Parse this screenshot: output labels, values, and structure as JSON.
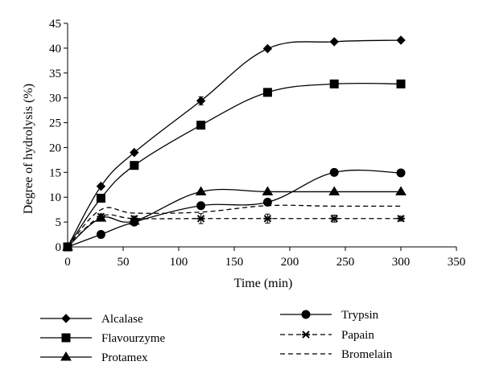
{
  "chart_data": {
    "type": "line",
    "title": "",
    "xlabel": "Time (min)",
    "ylabel": "Degree of hydrolysis (%)",
    "xlim": [
      0,
      350
    ],
    "ylim": [
      0,
      45
    ],
    "x_ticks": [
      "0",
      "50",
      "100",
      "150",
      "200",
      "250",
      "300",
      "350"
    ],
    "y_ticks": [
      "0",
      "5",
      "10",
      "15",
      "20",
      "25",
      "30",
      "35",
      "40",
      "45"
    ],
    "x": [
      0,
      30,
      60,
      120,
      180,
      240,
      300
    ],
    "grid": false,
    "legend_position": "bottom",
    "series": [
      {
        "name": "Alcalase",
        "marker": "diamond",
        "line": "solid",
        "values": [
          0,
          12.2,
          19.0,
          29.4,
          39.9,
          41.3,
          41.6
        ]
      },
      {
        "name": "Flavourzyme",
        "marker": "square",
        "line": "solid",
        "values": [
          0,
          9.8,
          16.4,
          24.5,
          31.1,
          32.8,
          32.8
        ]
      },
      {
        "name": "Protamex",
        "marker": "triangle",
        "line": "solid",
        "values": [
          0,
          5.8,
          5.2,
          11.1,
          11.1,
          11.1,
          11.1
        ]
      },
      {
        "name": "Trypsin",
        "marker": "circle",
        "line": "solid",
        "values": [
          0,
          2.5,
          5.0,
          8.3,
          9.0,
          15.0,
          14.9
        ]
      },
      {
        "name": "Papain",
        "marker": "x",
        "line": "dashed",
        "values": [
          0,
          6.1,
          5.7,
          5.7,
          5.7,
          5.7,
          5.7
        ]
      },
      {
        "name": "Bromelain",
        "marker": "none",
        "line": "dashed",
        "values": [
          0,
          7.5,
          6.8,
          7.0,
          8.3,
          8.2,
          8.2
        ]
      }
    ],
    "error_bars": {
      "Alcalase": [
        0,
        0.3,
        0.3,
        0.8,
        0.3,
        0.3,
        0.3
      ],
      "Papain": [
        0,
        0.5,
        0.5,
        1.0,
        0.9,
        0.7,
        0.5
      ]
    }
  }
}
